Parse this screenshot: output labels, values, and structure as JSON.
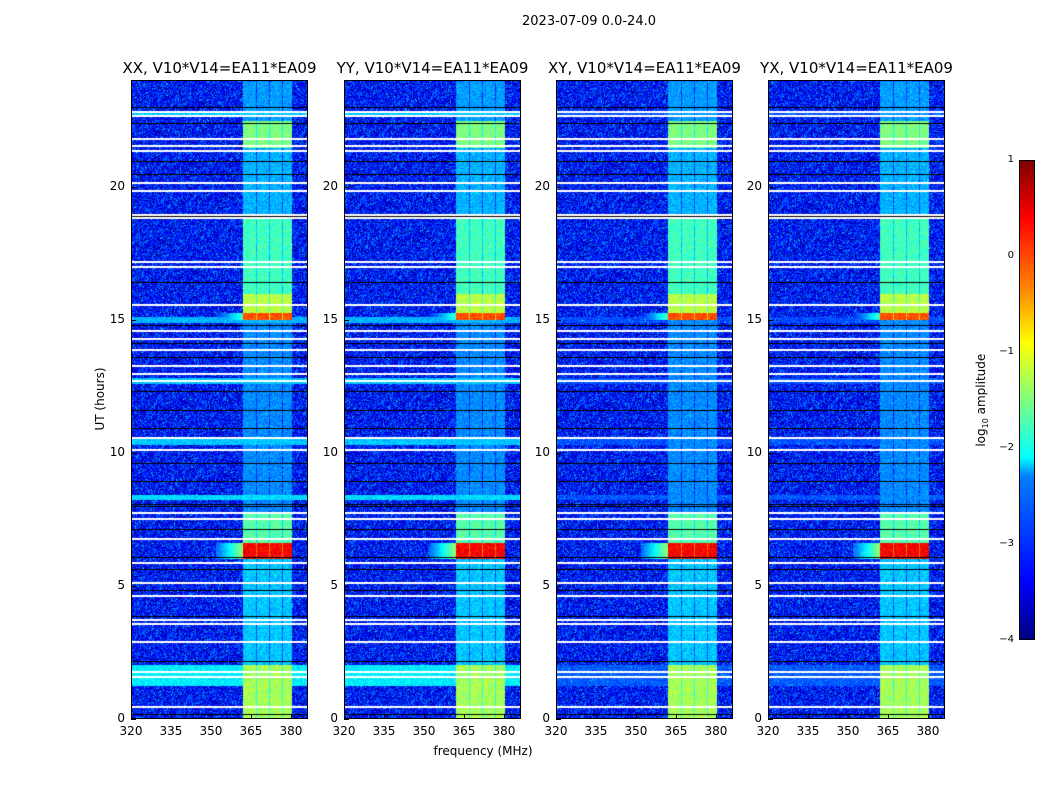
{
  "figure": {
    "suptitle": "2023-07-09 0.0-24.0",
    "ylabel": "UT (hours)",
    "xlabel": "frequency (MHz)",
    "colorbar_label_prefix": "log",
    "colorbar_label_sub": "10",
    "colorbar_label_suffix": " amplitude"
  },
  "chart_data": {
    "type": "heatmap",
    "title": "2023-07-09 0.0-24.0",
    "xlabel": "frequency (MHz)",
    "ylabel": "UT (hours)",
    "xlim": [
      320,
      386.4
    ],
    "ylim": [
      0,
      24
    ],
    "xticks": [
      "320",
      "335",
      "350",
      "365",
      "380"
    ],
    "xtick_values": [
      320,
      335,
      350,
      365,
      380
    ],
    "yticks": [
      "0",
      "5",
      "10",
      "15",
      "20"
    ],
    "ytick_values": [
      0,
      5,
      10,
      15,
      20
    ],
    "colorbar": {
      "label": "log10 amplitude",
      "range": [
        -4,
        1
      ],
      "ticks": [
        "1",
        "0",
        "−1",
        "−2",
        "−3",
        "−4"
      ],
      "tick_values": [
        1,
        0,
        -1,
        -2,
        -3,
        -4
      ],
      "colormap": "jet"
    },
    "panels": [
      {
        "title": "XX, V10*V14=EA11*EA09",
        "broadband_strength": 1.0
      },
      {
        "title": "YY, V10*V14=EA11*EA09",
        "broadband_strength": 1.0
      },
      {
        "title": "XY, V10*V14=EA11*EA09",
        "broadband_strength": 0.3
      },
      {
        "title": "YX, V10*V14=EA11*EA09",
        "broadband_strength": 0.3
      }
    ],
    "background_level": -3.3,
    "rfi_band_mhz": [
      362,
      381
    ],
    "rfi_subbands_mhz": [
      [
        362,
        367
      ],
      [
        367.5,
        372
      ],
      [
        372.5,
        377
      ],
      [
        377.5,
        381
      ]
    ],
    "rfi_levels_by_time": [
      {
        "t": [
          0,
          2.0
        ],
        "level": -1.3
      },
      {
        "t": [
          2.0,
          6.0
        ],
        "level": -2.4
      },
      {
        "t": [
          6.0,
          6.6
        ],
        "level": 0.4
      },
      {
        "t": [
          6.6,
          7.7
        ],
        "level": -1.7
      },
      {
        "t": [
          7.7,
          15.0
        ],
        "level": -2.7
      },
      {
        "t": [
          15.0,
          15.25
        ],
        "level": 0.0
      },
      {
        "t": [
          15.25,
          16.0
        ],
        "level": -1.2
      },
      {
        "t": [
          16.0,
          18.9
        ],
        "level": -1.8
      },
      {
        "t": [
          18.9,
          21.5
        ],
        "level": -2.5
      },
      {
        "t": [
          21.5,
          22.5
        ],
        "level": -1.5
      },
      {
        "t": [
          22.5,
          24.0
        ],
        "level": -2.6
      }
    ],
    "broadband_rows": [
      {
        "t": [
          1.2,
          2.0
        ],
        "level": -2.2
      },
      {
        "t": [
          8.2,
          8.4
        ],
        "level": -2.3
      },
      {
        "t": [
          10.3,
          10.5
        ],
        "level": -2.4
      },
      {
        "t": [
          12.6,
          12.8
        ],
        "level": -2.4
      },
      {
        "t": [
          14.9,
          15.1
        ],
        "level": -2.5
      },
      {
        "t": [
          22.7,
          22.8
        ],
        "level": -2.4
      }
    ],
    "flagged_hours": [
      0.4,
      1.55,
      1.75,
      2.85,
      3.55,
      3.7,
      4.6,
      5.1,
      5.85,
      6.75,
      7.5,
      7.75,
      10.1,
      10.55,
      12.7,
      13.0,
      13.3,
      13.9,
      14.3,
      14.6,
      15.6,
      17.0,
      17.2,
      18.85,
      19.0,
      19.9,
      20.2,
      21.4,
      21.6,
      21.85,
      22.7,
      22.85
    ],
    "gap_hours": [
      0.1,
      2.1,
      3.8,
      4.8,
      5.6,
      6.05,
      7.1,
      7.95,
      8.05,
      8.9,
      9.6,
      10.9,
      11.6,
      12.3,
      13.6,
      14.1,
      14.8,
      16.4,
      18.9,
      20.5,
      21.0,
      22.4,
      23.0
    ]
  }
}
